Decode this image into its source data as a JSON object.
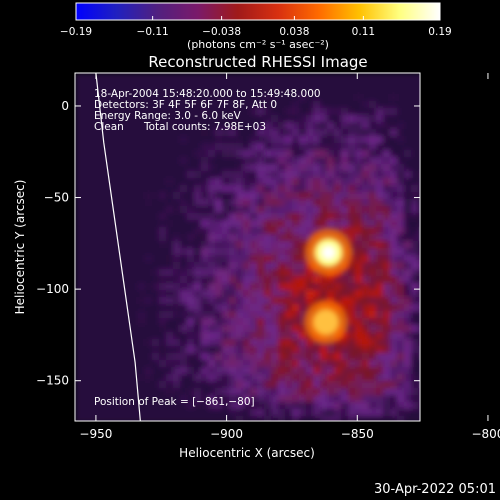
{
  "colorbar": {
    "ticks": [
      {
        "v": -0.19,
        "label": "−0.19"
      },
      {
        "v": -0.11,
        "label": "−0.11"
      },
      {
        "v": -0.038,
        "label": "−0.038"
      },
      {
        "v": 0.038,
        "label": "0.038"
      },
      {
        "v": 0.11,
        "label": "0.11"
      },
      {
        "v": 0.19,
        "label": "0.19"
      }
    ],
    "range": [
      -0.19,
      0.19
    ],
    "unit_label": "(photons cm⁻² s⁻¹ asec⁻²)",
    "colors": [
      "#0000ff",
      "#2020c0",
      "#502080",
      "#7a1a6a",
      "#a01a1a",
      "#d83010",
      "#ff6a00",
      "#ffc000",
      "#ffff80",
      "#ffffff"
    ]
  },
  "chart_data": {
    "type": "heatmap",
    "title": "Reconstructed RHESSI Image",
    "xlabel": "Heliocentric X (arcsec)",
    "ylabel": "Heliocentric Y (arcsec)",
    "xlim": [
      -958,
      -826
    ],
    "ylim": [
      -172,
      18
    ],
    "x_ticks": [
      {
        "v": -950,
        "label": "−950"
      },
      {
        "v": -900,
        "label": "−900"
      },
      {
        "v": -850,
        "label": "−850"
      },
      {
        "v": -800,
        "label": "−800"
      }
    ],
    "y_ticks": [
      {
        "v": 0,
        "label": "0"
      },
      {
        "v": -50,
        "label": "−50"
      },
      {
        "v": -100,
        "label": "−100"
      },
      {
        "v": -150,
        "label": "−150"
      }
    ],
    "sources": [
      {
        "x": -861,
        "y": -80,
        "value": 0.19
      },
      {
        "x": -862,
        "y": -118,
        "value": 0.12
      }
    ],
    "peak_position": [
      -861,
      -80
    ],
    "limb": [
      [
        -950,
        18
      ],
      [
        -947,
        -20
      ],
      [
        -943,
        -60
      ],
      [
        -939,
        -100
      ],
      [
        -935,
        -140
      ],
      [
        -933,
        -172
      ]
    ]
  },
  "info": {
    "time_range": "18-Apr-2004 15:48:20.000 to 15:49:48.000",
    "detectors": "Detectors: 3F 4F 5F 6F 7F 8F, Att 0",
    "energy": "Energy Range: 3.0 - 6.0 keV",
    "algorithm": "Clean",
    "counts": "Total counts: 7.98E+03",
    "peak_label": "Position of Peak = [−861,−80]"
  },
  "footer": {
    "date": "30-Apr-2022 05:01"
  }
}
